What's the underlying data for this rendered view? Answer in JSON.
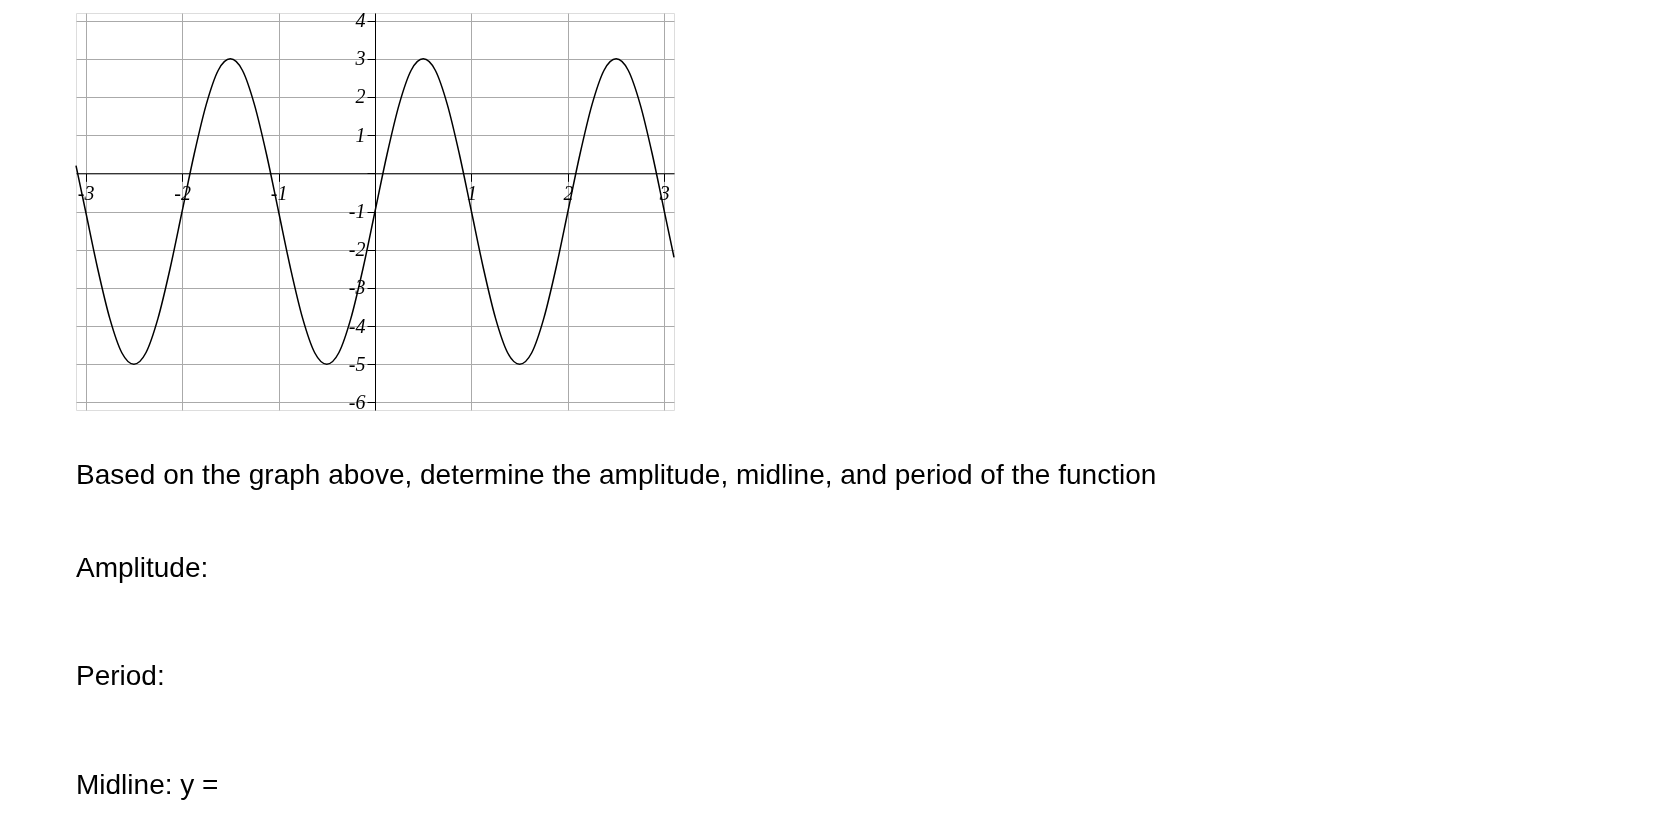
{
  "chart_data": {
    "type": "line",
    "x": [
      -3.1,
      -3,
      -2.875,
      -2.75,
      -2.625,
      -2.5,
      -2.375,
      -2.25,
      -2.125,
      -2,
      -1.875,
      -1.75,
      -1.625,
      -1.5,
      -1.375,
      -1.25,
      -1.125,
      -1,
      -0.875,
      -0.75,
      -0.625,
      -0.5,
      -0.375,
      -0.25,
      -0.125,
      0,
      0.125,
      0.25,
      0.375,
      0.5,
      0.625,
      0.75,
      0.875,
      1,
      1.125,
      1.25,
      1.375,
      1.5,
      1.625,
      1.75,
      1.875,
      2,
      2.125,
      2.25,
      2.375,
      2.5,
      2.625,
      2.75,
      2.875,
      3,
      3.1
    ],
    "series": [
      {
        "color": "#000000",
        "values": [
          0.2,
          -1,
          -2.5,
          -3.8,
          -4.7,
          -5,
          -4.7,
          -3.8,
          -2.5,
          -1,
          0.5,
          1.8,
          2.7,
          3,
          2.7,
          1.8,
          0.5,
          -1,
          -2.5,
          -3.8,
          -4.7,
          -5,
          -4.7,
          -3.8,
          -2.5,
          -1,
          0.5,
          1.8,
          2.7,
          3,
          2.7,
          1.8,
          0.5,
          -1,
          -2.5,
          -3.8,
          -4.7,
          -5,
          -4.7,
          -3.8,
          -2.5,
          -1,
          0.5,
          1.8,
          2.7,
          3,
          2.7,
          1.8,
          0.5,
          -1,
          -2.2
        ]
      }
    ],
    "xlim": [
      -3.1,
      3.1
    ],
    "ylim": [
      -6.2,
      4.2
    ],
    "xticks": [
      -3,
      -2,
      -1,
      {
        "value": 0,
        "label": null
      },
      1,
      2,
      3
    ],
    "yticks": [
      -6,
      -5,
      -4,
      -3,
      -2,
      -1,
      {
        "value": 0,
        "label": null
      },
      1,
      2,
      3,
      4
    ],
    "grid": true,
    "line_style": "solid",
    "annotations": [
      "Based on the graph above, determine the amplitude, midline, and period of the function",
      "Amplitude:",
      "Period:",
      "Midline: y ="
    ]
  }
}
